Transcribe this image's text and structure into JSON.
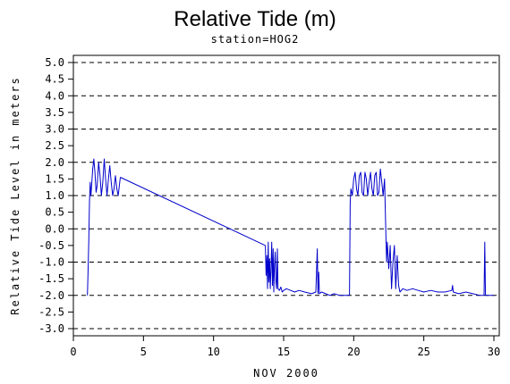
{
  "chart_data": {
    "type": "line",
    "title": "Relative Tide (m)",
    "subtitle": "station=HOG2",
    "xlabel": "NOV 2000",
    "ylabel": "Relative Tide Level in meters",
    "xlim": [
      0,
      30
    ],
    "ylim": [
      -3.0,
      5.0
    ],
    "x_ticks": [
      0,
      5,
      10,
      15,
      20,
      25,
      30
    ],
    "x_tick_labels": [
      "0",
      "5",
      "10",
      "15",
      "20",
      "25",
      "30"
    ],
    "y_ticks": [
      5.0,
      4.5,
      4.0,
      3.5,
      3.0,
      2.5,
      2.0,
      1.5,
      1.0,
      0.5,
      0.0,
      -0.5,
      -1.0,
      -1.5,
      -2.0,
      -2.5,
      -3.0
    ],
    "y_tick_labels": [
      "5.0",
      "4.5",
      "4.0",
      "3.5",
      "3.0",
      "2.5",
      "2.0",
      "1.5",
      "1.0",
      "0.5",
      "0.0",
      "-0.5",
      "-1.0",
      "-1.5",
      "-2.0",
      "-2.5",
      "-3.0"
    ],
    "gridlines_y": [
      5.0,
      4.0,
      3.0,
      2.0,
      1.0,
      0.0,
      -1.0,
      -2.0,
      -3.0
    ],
    "grid_style": "dashed",
    "line_color": "#0000cc",
    "series": [
      {
        "values_x": [
          1.0,
          1.05,
          1.1,
          1.15,
          1.2,
          1.25,
          1.3,
          1.38,
          1.46,
          1.54,
          1.62,
          1.7,
          1.8,
          1.9,
          2.0,
          2.1,
          2.2,
          2.3,
          2.4,
          2.5,
          2.6,
          2.7,
          2.8,
          2.9,
          3.0,
          3.1,
          3.2,
          3.35
        ],
        "values_y": [
          -2.0,
          -1.2,
          -0.4,
          0.8,
          1.4,
          1.0,
          1.3,
          1.8,
          2.1,
          1.7,
          1.1,
          1.3,
          2.0,
          1.6,
          1.0,
          1.4,
          2.1,
          1.5,
          1.0,
          1.5,
          1.9,
          1.4,
          1.0,
          1.2,
          1.6,
          1.2,
          1.0,
          1.55
        ]
      },
      {
        "values_x": [
          3.35,
          13.7
        ],
        "values_y": [
          1.55,
          -0.5
        ]
      },
      {
        "values_x": [
          13.7,
          13.75,
          13.8,
          13.85,
          13.9,
          13.95,
          14.0,
          14.05,
          14.1,
          14.15,
          14.2,
          14.25,
          14.3,
          14.35,
          14.4,
          14.45,
          14.5,
          14.55,
          14.6,
          14.7,
          14.8,
          14.9,
          15.0,
          15.2,
          15.5,
          15.8,
          16.1,
          16.5,
          17.0,
          17.3,
          17.4,
          17.45,
          17.5,
          17.55,
          17.7,
          18.0,
          18.3,
          18.6,
          19.0,
          19.3,
          19.5,
          19.7
        ],
        "values_y": [
          -0.5,
          -1.4,
          -0.8,
          -1.8,
          -0.4,
          -1.6,
          -0.9,
          -1.8,
          -1.2,
          -0.4,
          -1.7,
          -0.6,
          -1.9,
          -1.1,
          -0.7,
          -1.6,
          -1.8,
          -0.6,
          -1.8,
          -1.85,
          -1.75,
          -1.9,
          -1.85,
          -1.8,
          -1.85,
          -1.9,
          -1.85,
          -1.9,
          -1.95,
          -1.9,
          -0.6,
          -1.95,
          -1.3,
          -1.95,
          -1.9,
          -1.95,
          -2.0,
          -1.95,
          -2.0,
          -2.0,
          -2.0,
          -2.0
        ]
      },
      {
        "values_x": [
          19.7,
          19.75,
          19.8,
          19.9,
          20.0,
          20.1,
          20.2,
          20.3,
          20.4,
          20.5,
          20.6,
          20.7,
          20.8,
          20.9,
          21.0,
          21.1,
          21.2,
          21.3,
          21.4,
          21.5,
          21.6,
          21.7,
          21.8,
          21.9,
          22.0,
          22.1,
          22.2,
          22.3,
          22.35,
          22.4,
          22.5,
          22.6,
          22.7,
          22.8,
          22.9,
          23.0,
          23.1,
          23.2,
          23.3,
          23.5,
          23.8,
          24.2,
          24.6,
          25.0,
          25.5,
          26.0,
          26.5,
          27.0,
          27.05,
          27.1,
          27.5,
          28.0,
          28.5,
          29.0,
          29.3,
          29.35,
          29.4,
          29.6,
          30.0
        ],
        "values_y": [
          -2.0,
          0.8,
          1.2,
          1.0,
          1.5,
          1.7,
          1.2,
          1.0,
          1.6,
          1.7,
          1.1,
          1.0,
          1.7,
          1.5,
          1.0,
          1.4,
          1.7,
          1.2,
          1.0,
          1.6,
          1.7,
          1.0,
          1.1,
          1.8,
          1.4,
          1.0,
          1.5,
          -0.3,
          -1.0,
          -0.4,
          -1.2,
          -0.5,
          -1.8,
          -1.0,
          -0.5,
          -1.8,
          -0.8,
          -1.7,
          -1.9,
          -1.8,
          -1.85,
          -1.8,
          -1.85,
          -1.9,
          -1.85,
          -1.9,
          -1.9,
          -1.85,
          -1.7,
          -1.9,
          -1.95,
          -1.9,
          -1.95,
          -2.0,
          -2.0,
          -0.4,
          -2.0,
          -2.0,
          -2.0
        ]
      }
    ]
  }
}
